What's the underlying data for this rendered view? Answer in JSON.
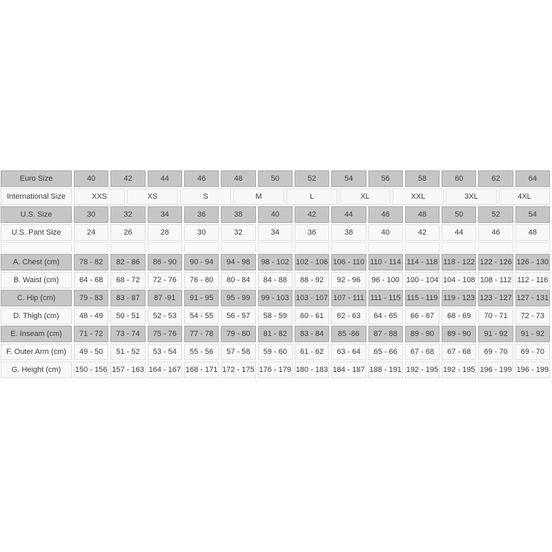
{
  "colors": {
    "page_background": "#ffffff",
    "gray_cell_bg": "#c6c6c6",
    "gray_cell_border": "#a5a5a5",
    "light_cell_bg": "#f8f8f8",
    "light_cell_border": "#dcdcdc",
    "text": "#3d3d3d"
  },
  "size_chart": {
    "rows": [
      {
        "key": "euro-size",
        "label": "Euro Size",
        "variant": "gray",
        "values": [
          "40",
          "42",
          "44",
          "46",
          "48",
          "50",
          "52",
          "54",
          "56",
          "58",
          "60",
          "62",
          "64"
        ]
      },
      {
        "key": "international-size",
        "label": "International Size",
        "variant": "light",
        "values": [
          "XXS",
          "XS",
          "S",
          "M",
          "L",
          "XL",
          "XXL",
          "3XL",
          "4XL"
        ]
      },
      {
        "key": "us-size",
        "label": "U.S. Size",
        "variant": "gray",
        "values": [
          "30",
          "32",
          "34",
          "36",
          "38",
          "40",
          "42",
          "44",
          "46",
          "48",
          "50",
          "52",
          "54"
        ]
      },
      {
        "key": "us-pant-size",
        "label": "U.S. Pant Size",
        "variant": "light",
        "values": [
          "24",
          "26",
          "28",
          "30",
          "32",
          "34",
          "36",
          "38",
          "40",
          "42",
          "44",
          "46",
          "48"
        ]
      },
      {
        "key": "spacer",
        "label": "",
        "variant": "spacer",
        "values": [
          "",
          "",
          "",
          "",
          "",
          "",
          "",
          "",
          "",
          "",
          "",
          "",
          ""
        ]
      },
      {
        "key": "chest",
        "label": "A. Chest (cm)",
        "variant": "gray",
        "values": [
          "78 - 82",
          "82 - 86",
          "86 - 90",
          "90 - 94",
          "94 - 98",
          "98 - 102",
          "102 - 106",
          "106 - 110",
          "110 - 114",
          "114 - 118",
          "118 - 122",
          "122 - 126",
          "126 - 130"
        ]
      },
      {
        "key": "waist",
        "label": "B. Waist (cm)",
        "variant": "light",
        "values": [
          "64 - 68",
          "68 - 72",
          "72 - 76",
          "76 - 80",
          "80 - 84",
          "84 - 88",
          "88 - 92",
          "92 - 96",
          "96 - 100",
          "100 - 104",
          "104 - 108",
          "108 - 112",
          "112 - 116"
        ]
      },
      {
        "key": "hip",
        "label": "C. Hip (cm)",
        "variant": "gray",
        "values": [
          "79 - 83",
          "83 - 87",
          "87 -91",
          "91 - 95",
          "95 - 99",
          "99 - 103",
          "103 - 107",
          "107 - 111",
          "111 - 115",
          "115 - 119",
          "119 - 123",
          "123 - 127",
          "127 - 131"
        ]
      },
      {
        "key": "thigh",
        "label": "D. Thigh (cm)",
        "variant": "light",
        "values": [
          "48 - 49",
          "50 - 51",
          "52 - 53",
          "54 - 55",
          "56 - 57",
          "58 - 59",
          "60 - 61",
          "62 - 63",
          "64 - 65",
          "66 - 67",
          "68 - 69",
          "70 - 71",
          "72 - 73"
        ]
      },
      {
        "key": "inseam",
        "label": "E. Inseam (cm)",
        "variant": "gray",
        "values": [
          "71 - 72",
          "73 - 74",
          "75 - 76",
          "77 - 78",
          "79 - 80",
          "81 - 82",
          "83 - 84",
          "85 -86",
          "87 - 88",
          "89 - 90",
          "89 - 90",
          "91 - 92",
          "91 - 92"
        ]
      },
      {
        "key": "outer-arm",
        "label": "F. Outer Arm (cm)",
        "variant": "light",
        "values": [
          "49 - 50",
          "51 - 52",
          "53 - 54",
          "55 - 56",
          "57 - 58",
          "59 - 60",
          "61 - 62",
          "63 - 64",
          "65 - 66",
          "67 - 68",
          "67 - 68",
          "69 - 70",
          "69 - 70"
        ]
      },
      {
        "key": "height",
        "label": "G. Height (cm)",
        "variant": "light",
        "values": [
          "150 - 156",
          "157 - 163",
          "164 - 167",
          "168 - 171",
          "172 - 175",
          "176 - 179",
          "180 - 183",
          "184 - 187",
          "188 - 191",
          "192 - 195",
          "192 - 195",
          "196 - 199",
          "196 - 199"
        ]
      }
    ]
  }
}
